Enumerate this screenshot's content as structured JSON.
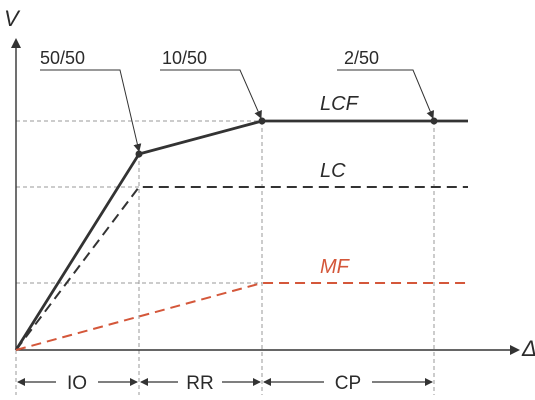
{
  "axes": {
    "y_label": "V",
    "x_label": "Δ"
  },
  "performance_points": [
    "50/50",
    "10/50",
    "2/50"
  ],
  "curves": {
    "lcf": "LCF",
    "lc": "LC",
    "mf": "MF"
  },
  "zones": [
    "IO",
    "RR",
    "CP"
  ],
  "colors": {
    "line": "#333333",
    "guide": "#9a9a9a",
    "mf": "#d4573a"
  }
}
